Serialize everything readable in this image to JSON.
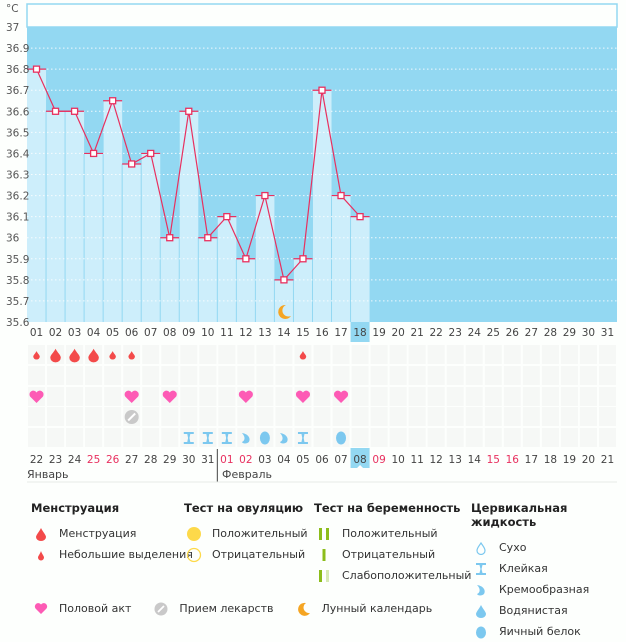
{
  "chart_data": {
    "type": "line",
    "title": "",
    "ylabel": "°C",
    "xlabel": "",
    "ylim": [
      35.6,
      37.0
    ],
    "yticks": [
      "35.6",
      "35.7",
      "35.8",
      "35.9",
      "36",
      "36.1",
      "36.2",
      "36.3",
      "36.4",
      "36.5",
      "36.6",
      "36.7",
      "36.8",
      "36.9",
      "37"
    ],
    "x": [
      "01",
      "02",
      "03",
      "04",
      "05",
      "06",
      "07",
      "08",
      "09",
      "10",
      "11",
      "12",
      "13",
      "14",
      "15",
      "16",
      "17",
      "18",
      "19",
      "20",
      "21",
      "22",
      "23",
      "24",
      "25",
      "26",
      "27",
      "28",
      "29",
      "30",
      "31"
    ],
    "current_day": "18",
    "series": [
      {
        "name": "Базальная температура",
        "values": [
          36.8,
          36.6,
          36.6,
          36.4,
          36.65,
          36.35,
          36.4,
          36.0,
          36.6,
          36.0,
          36.1,
          35.9,
          36.2,
          35.8,
          35.9,
          36.7,
          36.2,
          36.1
        ]
      }
    ],
    "grid": true,
    "colors": {
      "plot_bg": "#93d8f2",
      "bar": "#cdeefb",
      "line": "#e8305f",
      "grid": "#ffffff"
    },
    "markers": {
      "moon_day": "14"
    }
  },
  "rows": {
    "menstruation": [
      "spot",
      "heavy",
      "heavy",
      "heavy",
      "spot",
      "spot",
      null,
      null,
      null,
      null,
      null,
      null,
      null,
      null,
      "spot",
      null,
      null,
      null
    ],
    "ovulation_test": [],
    "intercourse": [
      1,
      0,
      0,
      0,
      0,
      1,
      0,
      1,
      0,
      0,
      0,
      1,
      0,
      0,
      1,
      0,
      1,
      0
    ],
    "medication": [
      0,
      0,
      0,
      0,
      0,
      1,
      0,
      0,
      0,
      0,
      0,
      0,
      0,
      0,
      0,
      0,
      0,
      0
    ],
    "cervical": [
      null,
      null,
      null,
      null,
      null,
      null,
      null,
      null,
      "sticky",
      "sticky",
      "sticky",
      "creamy",
      "egg_white",
      "creamy",
      "sticky",
      null,
      "egg_white",
      null
    ]
  },
  "calendar_dates": {
    "days": [
      "22",
      "23",
      "24",
      "25",
      "26",
      "27",
      "28",
      "29",
      "30",
      "31",
      "01",
      "02",
      "03",
      "04",
      "05",
      "06",
      "07",
      "08",
      "09",
      "10",
      "11",
      "12",
      "13",
      "14",
      "15",
      "16",
      "17",
      "18",
      "19",
      "20",
      "21"
    ],
    "weekend": [
      "25",
      "26",
      "01",
      "02",
      "09",
      "15",
      "16"
    ],
    "current": "08",
    "months": {
      "jan": "Январь",
      "feb": "Февраль"
    }
  },
  "legend": {
    "menstruation": {
      "title": "Менструация",
      "items": [
        "Менструация",
        "Небольшие выделения"
      ]
    },
    "ovulation": {
      "title": "Тест на овуляцию",
      "items": [
        "Положительный",
        "Отрицательный"
      ]
    },
    "pregnancy": {
      "title": "Тест на беременность",
      "items": [
        "Положительный",
        "Отрицательный",
        "Слабоположительный"
      ]
    },
    "cervical": {
      "title": "Цервикальная жидкость",
      "items": [
        "Сухо",
        "Клейкая",
        "Кремообразная",
        "Водянистая",
        "Яичный белок"
      ]
    },
    "other": [
      "Половой акт",
      "Прием лекарств",
      "Лунный календарь"
    ]
  },
  "colors": {
    "blood": "#f34a4a",
    "heart": "#fd5bb5",
    "pill": "#c9c9c9",
    "moon": "#f5a523",
    "cervical": "#7cc8ef",
    "ovulation": "#fdd94a",
    "pregnancy": "#8cbd1b",
    "pregnancy_faint": "#d8eab5",
    "weekend": "#e8305f",
    "highlight": "#93d8f2"
  }
}
